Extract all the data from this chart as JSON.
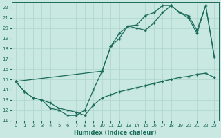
{
  "xlabel": "Humidex (Indice chaleur)",
  "xlim": [
    -0.5,
    23.5
  ],
  "ylim": [
    11,
    22.5
  ],
  "xticks": [
    0,
    1,
    2,
    3,
    4,
    5,
    6,
    7,
    8,
    9,
    10,
    11,
    12,
    13,
    14,
    15,
    16,
    17,
    18,
    19,
    20,
    21,
    22,
    23
  ],
  "yticks": [
    11,
    12,
    13,
    14,
    15,
    16,
    17,
    18,
    19,
    20,
    21,
    22
  ],
  "bg_color": "#c9e8e2",
  "grid_color": "#b0d8d0",
  "line_color": "#1a6b5a",
  "line1_x": [
    0,
    1,
    2,
    3,
    4,
    5,
    6,
    7,
    8,
    9,
    10,
    11,
    12,
    13,
    14,
    15,
    16,
    17,
    18,
    19,
    20,
    21,
    22,
    23
  ],
  "line1_y": [
    14.8,
    13.8,
    13.2,
    13.0,
    12.7,
    12.2,
    12.0,
    11.8,
    11.5,
    12.5,
    13.2,
    13.5,
    13.8,
    14.0,
    14.2,
    14.4,
    14.6,
    14.8,
    15.0,
    15.2,
    15.3,
    15.5,
    15.6,
    15.2
  ],
  "line2_x": [
    0,
    1,
    2,
    3,
    4,
    5,
    6,
    7,
    8,
    9,
    10,
    11,
    12,
    13,
    14,
    15,
    16,
    17,
    18,
    19,
    20,
    21,
    22,
    23
  ],
  "line2_y": [
    14.8,
    13.8,
    13.2,
    13.0,
    12.2,
    12.0,
    11.5,
    11.5,
    12.0,
    14.0,
    15.8,
    18.2,
    19.0,
    20.2,
    20.0,
    19.8,
    20.5,
    21.5,
    22.2,
    21.5,
    21.0,
    19.5,
    22.2,
    17.2
  ],
  "line3_x": [
    0,
    10,
    11,
    12,
    13,
    14,
    15,
    16,
    17,
    18,
    19,
    20,
    21,
    22,
    23
  ],
  "line3_y": [
    14.8,
    15.8,
    18.2,
    19.5,
    20.2,
    20.3,
    21.2,
    21.5,
    22.2,
    22.2,
    21.5,
    21.2,
    19.8,
    22.2,
    17.2
  ]
}
